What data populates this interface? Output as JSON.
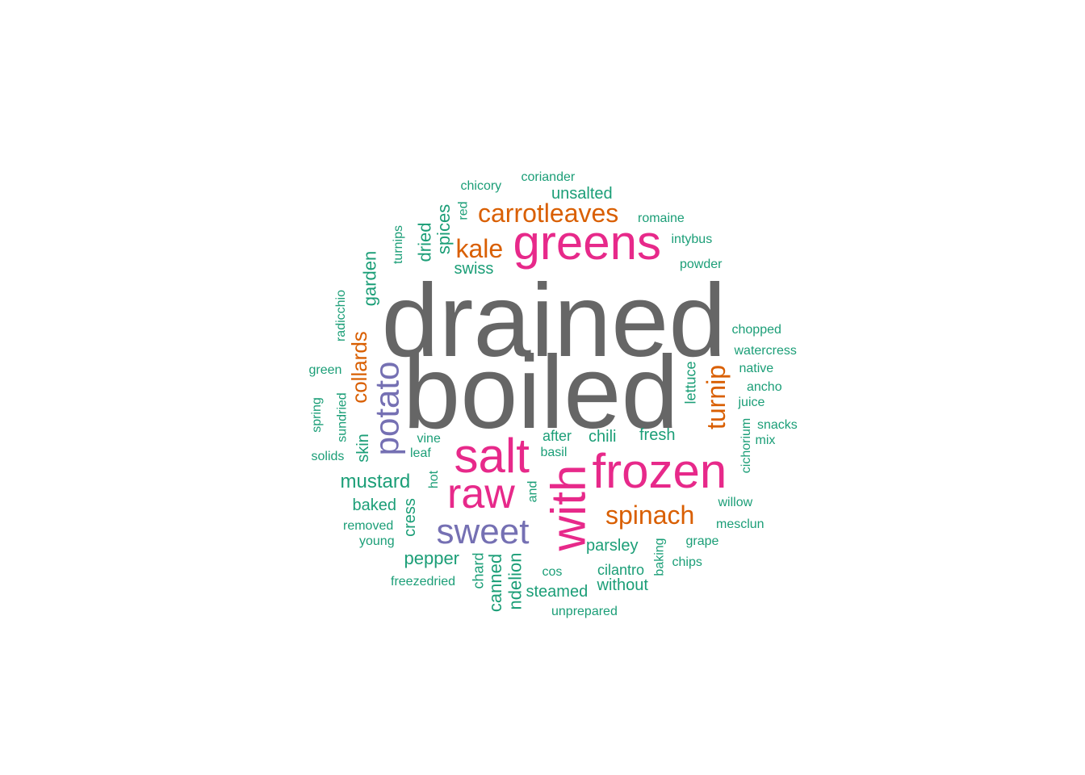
{
  "palette": {
    "gray": "#666666",
    "pink": "#E7298A",
    "purple": "#7570B3",
    "orange": "#D95F02",
    "teal": "#1B9E77"
  },
  "words": [
    {
      "text": "drained",
      "color": "gray"
    },
    {
      "text": "boiled",
      "color": "gray"
    },
    {
      "text": "greens",
      "color": "pink"
    },
    {
      "text": "salt",
      "color": "pink"
    },
    {
      "text": "frozen",
      "color": "pink"
    },
    {
      "text": "raw",
      "color": "pink"
    },
    {
      "text": "with",
      "color": "pink"
    },
    {
      "text": "sweet",
      "color": "purple"
    },
    {
      "text": "potato",
      "color": "purple"
    },
    {
      "text": "carrotleaves",
      "color": "orange"
    },
    {
      "text": "kale",
      "color": "orange"
    },
    {
      "text": "spinach",
      "color": "orange"
    },
    {
      "text": "turnip",
      "color": "orange"
    },
    {
      "text": "collards",
      "color": "orange"
    },
    {
      "text": "coriander",
      "color": "teal"
    },
    {
      "text": "chicory",
      "color": "teal"
    },
    {
      "text": "unsalted",
      "color": "teal"
    },
    {
      "text": "romaine",
      "color": "teal"
    },
    {
      "text": "intybus",
      "color": "teal"
    },
    {
      "text": "powder",
      "color": "teal"
    },
    {
      "text": "red",
      "color": "teal"
    },
    {
      "text": "spices",
      "color": "teal"
    },
    {
      "text": "dried",
      "color": "teal"
    },
    {
      "text": "turnips",
      "color": "teal"
    },
    {
      "text": "swiss",
      "color": "teal"
    },
    {
      "text": "garden",
      "color": "teal"
    },
    {
      "text": "radicchio",
      "color": "teal"
    },
    {
      "text": "chopped",
      "color": "teal"
    },
    {
      "text": "watercress",
      "color": "teal"
    },
    {
      "text": "native",
      "color": "teal"
    },
    {
      "text": "ancho",
      "color": "teal"
    },
    {
      "text": "juice",
      "color": "teal"
    },
    {
      "text": "snacks",
      "color": "teal"
    },
    {
      "text": "mix",
      "color": "teal"
    },
    {
      "text": "cichorium",
      "color": "teal"
    },
    {
      "text": "lettuce",
      "color": "teal"
    },
    {
      "text": "green",
      "color": "teal"
    },
    {
      "text": "spring",
      "color": "teal"
    },
    {
      "text": "sundried",
      "color": "teal"
    },
    {
      "text": "solids",
      "color": "teal"
    },
    {
      "text": "skin",
      "color": "teal"
    },
    {
      "text": "vine",
      "color": "teal"
    },
    {
      "text": "leaf",
      "color": "teal"
    },
    {
      "text": "after",
      "color": "teal"
    },
    {
      "text": "basil",
      "color": "teal"
    },
    {
      "text": "chili",
      "color": "teal"
    },
    {
      "text": "fresh",
      "color": "teal"
    },
    {
      "text": "mustard",
      "color": "teal"
    },
    {
      "text": "hot",
      "color": "teal"
    },
    {
      "text": "baked",
      "color": "teal"
    },
    {
      "text": "cress",
      "color": "teal"
    },
    {
      "text": "removed",
      "color": "teal"
    },
    {
      "text": "young",
      "color": "teal"
    },
    {
      "text": "and",
      "color": "teal"
    },
    {
      "text": "willow",
      "color": "teal"
    },
    {
      "text": "mesclun",
      "color": "teal"
    },
    {
      "text": "grape",
      "color": "teal"
    },
    {
      "text": "parsley",
      "color": "teal"
    },
    {
      "text": "baking",
      "color": "teal"
    },
    {
      "text": "chips",
      "color": "teal"
    },
    {
      "text": "pepper",
      "color": "teal"
    },
    {
      "text": "chard",
      "color": "teal"
    },
    {
      "text": "canned",
      "color": "teal"
    },
    {
      "text": "ndelion",
      "color": "teal"
    },
    {
      "text": "cos",
      "color": "teal"
    },
    {
      "text": "cilantro",
      "color": "teal"
    },
    {
      "text": "without",
      "color": "teal"
    },
    {
      "text": "steamed",
      "color": "teal"
    },
    {
      "text": "freezedried",
      "color": "teal"
    },
    {
      "text": "unprepared",
      "color": "teal"
    }
  ]
}
